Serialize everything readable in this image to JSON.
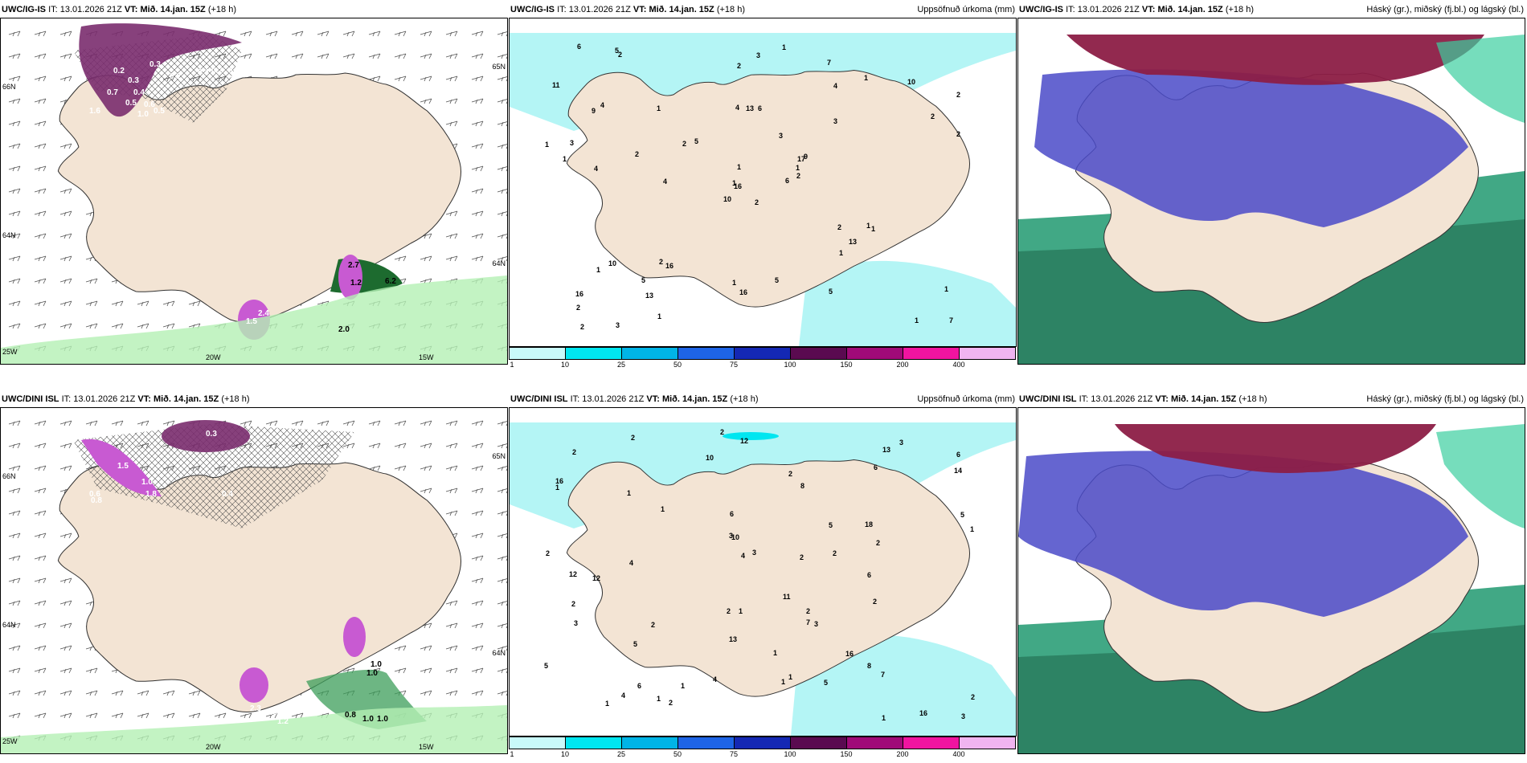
{
  "rows": [
    {
      "model": "UWC/IG-IS",
      "it_label": "IT:",
      "it_value": "13.01.2026 21Z",
      "vt_label": "VT:",
      "vt_value": "Mið. 14.jan. 15Z",
      "lead": "(+18 h)",
      "left_axis": [
        "66N",
        "64N",
        "25W"
      ],
      "right_axis": [
        "65N",
        "64N"
      ],
      "bottom_axis": [
        "20W",
        "15W"
      ],
      "wind_panel_values": [
        "0.3",
        "0.2",
        "0.4",
        "0.2",
        "0.2",
        "0.2",
        "0.2",
        "0.3",
        "0.4",
        "0.6",
        "0.7",
        "0.5",
        "1.6",
        "1.0",
        "0.5",
        "2.7",
        "2.4",
        "1.2",
        "1.5",
        "2.0",
        "6.2"
      ],
      "precip_values": [
        "2",
        "9",
        "16",
        "16",
        "17",
        "16",
        "7",
        "6",
        "4",
        "6",
        "2",
        "7",
        "4",
        "2",
        "10",
        "3",
        "3",
        "4",
        "3",
        "10",
        "5",
        "2",
        "13",
        "13",
        "9",
        "1",
        "4",
        "2",
        "1",
        "2",
        "2",
        "1",
        "1",
        "1",
        "1",
        "1",
        "2",
        "1",
        "1",
        "1",
        "1",
        "2",
        "2",
        "1",
        "1",
        "1",
        "1",
        "2",
        "16",
        "2",
        "1",
        "2",
        "11",
        "13",
        "5",
        "5",
        "5",
        "6",
        "5",
        "10",
        "3",
        "4",
        "3"
      ]
    },
    {
      "model": "UWC/DINI ISL",
      "it_label": "IT:",
      "it_value": "13.01.2026 21Z",
      "vt_label": "VT:",
      "vt_value": "Mið. 14.jan. 15Z",
      "lead": "(+18 h)",
      "left_axis": [
        "66N",
        "64N",
        "25W"
      ],
      "right_axis": [
        "65N",
        "64N"
      ],
      "bottom_axis": [
        "20W",
        "15W"
      ],
      "wind_panel_values": [
        "0.3",
        "0.6",
        "0.8",
        "1.5",
        "1.8",
        "1.0",
        "0.4",
        "2.3",
        "1.3",
        "1.2",
        "1.0",
        "0.8",
        "1.0",
        "1.0",
        "1.0"
      ],
      "precip_values": [
        "2",
        "12",
        "18",
        "6",
        "16",
        "16",
        "12",
        "8",
        "6",
        "3",
        "3",
        "2",
        "2",
        "1",
        "1",
        "5",
        "1",
        "12",
        "11",
        "13",
        "16",
        "7",
        "14",
        "10",
        "6",
        "4",
        "2",
        "2",
        "2",
        "1",
        "2",
        "1",
        "2",
        "1",
        "1",
        "3",
        "2",
        "2",
        "1",
        "1",
        "1",
        "2",
        "2",
        "1",
        "1",
        "2",
        "6",
        "5",
        "4",
        "4",
        "5",
        "8",
        "3",
        "6",
        "5",
        "10",
        "7",
        "3",
        "13",
        "2",
        "2",
        "4",
        "5",
        "3"
      ]
    }
  ],
  "precip_panel_title": "Uppsöfnuð úrkoma (mm)",
  "cloud_panel_title": "Háský (gr.), miðský (fj.bl.) og lágský (bl.)",
  "colorbar": {
    "ticks": [
      "1",
      "10",
      "25",
      "50",
      "75",
      "100",
      "150",
      "200",
      "400"
    ],
    "colors": [
      "#c8fafa",
      "#00e6f0",
      "#00b4e6",
      "#1e64e6",
      "#1428b4",
      "#5a0a50",
      "#a00a78",
      "#f014a0",
      "#f0b4f0"
    ]
  },
  "colors": {
    "land": "#f3e4d4",
    "sea": "#ffffff",
    "precip_light": "#b4f5f5",
    "snow": "#c85ad2",
    "rain_green": "#b4f0b4",
    "cloud_high": "#8c1e46",
    "cloud_mid": "#4646c8",
    "cloud_low": "#28a078"
  }
}
